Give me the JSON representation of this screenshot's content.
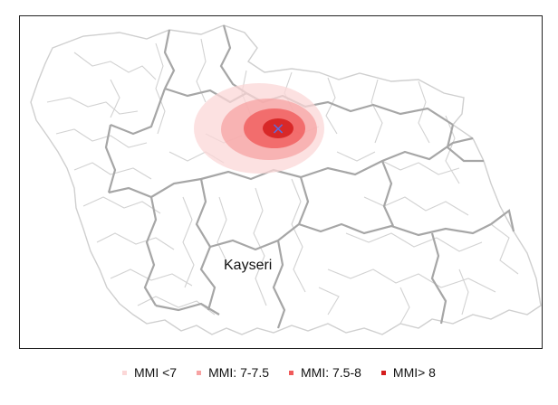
{
  "map": {
    "city_label": "Kayseri",
    "epicenter_marker": "×",
    "epicenter_color": "#5b6ee1",
    "border_color_major": "#a6a6a6",
    "border_color_minor": "#cfcfcf",
    "intensity_zones": [
      {
        "label": "MMI <7",
        "color": "#fbd7d7"
      },
      {
        "label": "MMI: 7-7.5",
        "color": "#f7a3a3"
      },
      {
        "label": "MMI: 7.5-8",
        "color": "#f05b5b"
      },
      {
        "label": "MMI> 8",
        "color": "#d41c1c"
      }
    ]
  },
  "legend": {
    "items": [
      {
        "label": "MMI <7",
        "color": "#fbd7d7"
      },
      {
        "label": "MMI: 7-7.5",
        "color": "#f7a3a3"
      },
      {
        "label": "MMI: 7.5-8",
        "color": "#f05b5b"
      },
      {
        "label": "MMI> 8",
        "color": "#d41c1c"
      }
    ]
  }
}
